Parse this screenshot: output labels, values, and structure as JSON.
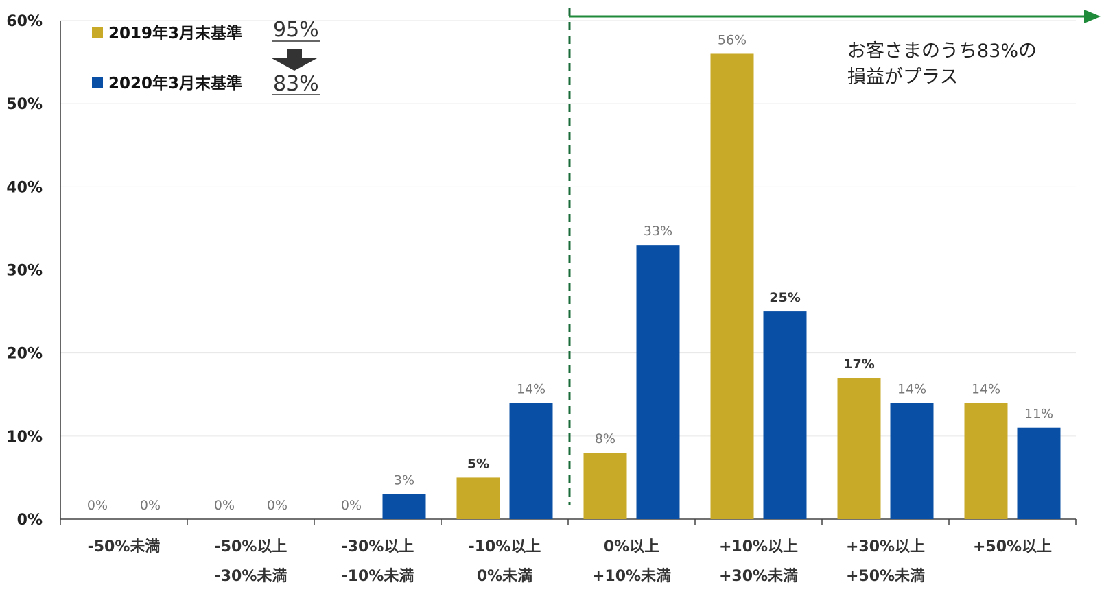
{
  "chart_data": {
    "type": "bar",
    "categories": [
      [
        "-50%未満"
      ],
      [
        "-50%以上",
        "-30%未満"
      ],
      [
        "-30%以上",
        "-10%未満"
      ],
      [
        "-10%以上",
        "0%未満"
      ],
      [
        "0%以上",
        "+10%未満"
      ],
      [
        "+10%以上",
        "+30%未満"
      ],
      [
        "+30%以上",
        "+50%未満"
      ],
      [
        "+50%以上"
      ]
    ],
    "series": [
      {
        "name": "2019年3月末基準",
        "color": "#c8aa28",
        "values": [
          0,
          0,
          0,
          5,
          8,
          56,
          17,
          14
        ],
        "labels": [
          "0%",
          "0%",
          "0%",
          "5%",
          "8%",
          "56%",
          "17%",
          "14%"
        ]
      },
      {
        "name": "2020年3月末基準",
        "color": "#0a4fa6",
        "values": [
          0,
          0,
          3,
          14,
          33,
          25,
          14,
          11
        ],
        "labels": [
          "0%",
          "0%",
          "3%",
          "14%",
          "33%",
          "25%",
          "14%",
          "11%"
        ]
      }
    ],
    "ylim": [
      0,
      60
    ],
    "yticks": [
      0,
      10,
      20,
      30,
      40,
      50,
      60
    ],
    "ytick_labels": [
      "0%",
      "10%",
      "20%",
      "30%",
      "40%",
      "50%",
      "60%"
    ],
    "grid": true,
    "legend_position": "top-left",
    "legend_totals": [
      "95%",
      "83%"
    ],
    "annotation": [
      "お客さまのうち83%の",
      "損益がプラス"
    ],
    "divider_after_category": 3,
    "divider_color": "#1a6b3a",
    "arrow_color": "#1f8a3a"
  }
}
